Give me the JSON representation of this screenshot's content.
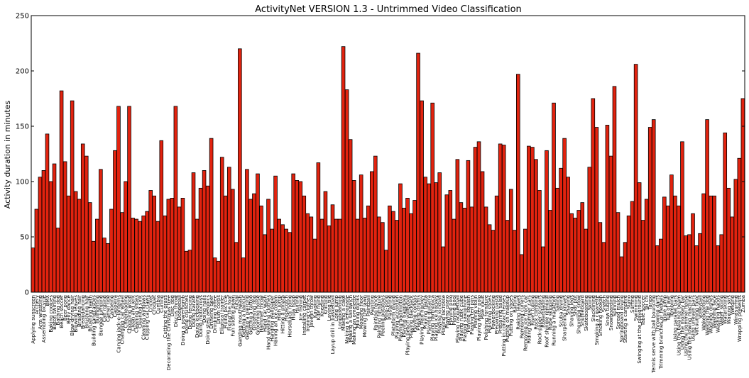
{
  "chart_data": {
    "type": "bar",
    "title": "ActivityNet VERSION 1.3 - Untrimmed Video Classification",
    "xlabel": "",
    "ylabel": "Activity duration in minutes",
    "ylim": [
      0,
      250
    ],
    "yticks": [
      0,
      50,
      100,
      150,
      200,
      250
    ],
    "grid": false,
    "bar_color": "#e2230f",
    "categories": [
      "Applying sunscreen",
      "Archery",
      "Arm wrestling",
      "Assembling bicycle",
      "BMX",
      "Baking cookies",
      "Baton twirling",
      "Bathing dog",
      "Beach soccer",
      "Beer pong",
      "Belly dance",
      "Blow-drying hair",
      "Blowing leaves",
      "Braiding hair",
      "Breakdancing",
      "Brushing hair",
      "Brushing teeth",
      "Building sandcastles",
      "Bullfighting",
      "Bungee jumping",
      "Calf roping",
      "Camel ride",
      "Canoeing",
      "Capoeira",
      "Carving jack-o-lanterns",
      "Changing car wheel",
      "Cheerleading",
      "Chopping wood",
      "Clean and jerk",
      "Cleaning shoes",
      "Cleaning sink",
      "Cleaning windows",
      "Clipping cat claws",
      "Cricket",
      "Croquet",
      "Cumbia",
      "Curling",
      "Cutting the grass",
      "Decorating the Christmas tree",
      "Disc dog",
      "Discus throw",
      "Dodgeball",
      "Doing a powerbomb",
      "Doing crunches",
      "Doing fencing",
      "Doing karate",
      "Doing kickboxing",
      "Doing motocross",
      "Doing nails",
      "Doing step aerobics",
      "Drinking beer",
      "Drinking coffee",
      "Drum corps",
      "Elliptical trainer",
      "Fixing bicycle",
      "Fixing the roof",
      "Fun sliding down",
      "Futsal",
      "Gargling mouthwash",
      "Getting a haircut",
      "Getting a piercing",
      "Getting a tattoo",
      "Grooming dog",
      "Grooming horse",
      "Hammer throw",
      "Hand car wash",
      "Hand washing clothes",
      "Hanging wallpaper",
      "Having an ice cream",
      "High jump",
      "Hitting a pinata",
      "Hopscotch",
      "Horseback riding",
      "Hula hoop",
      "Hurling",
      "Ice fishing",
      "Installing carpet",
      "Ironing clothes",
      "Javelin throw",
      "Kayaking",
      "Kite flying",
      "Kneeling",
      "Knitting",
      "Laying tile",
      "Layup drill in basketball",
      "Long jump",
      "Longboarding",
      "Making a cake",
      "Making a lemonade",
      "Making a sandwich",
      "Making an omelette",
      "Mixing drinks",
      "Mooping floor",
      "Mowing the lawn",
      "Paintball",
      "Painting",
      "Painting fence",
      "Painting furniture",
      "Peeling potatoes",
      "Ping-pong",
      "Plastering",
      "Plataform diving",
      "Playing accordion",
      "Playing badminton",
      "Playing bagpipes",
      "Playing beach volleyball",
      "Playing blackjack",
      "Playing congas",
      "Playing drums",
      "Playing field hockey",
      "Playing flauta",
      "Playing guitarra",
      "Playing harmonica",
      "Playing ice hockey",
      "Playing kickball",
      "Playing lacrosse",
      "Playing piano",
      "Playing polo",
      "Playing pool",
      "Playing racquetball",
      "Playing rubik cube",
      "Playing saxophone",
      "Playing squash",
      "Playing ten pins",
      "Playing violin",
      "Playing water polo",
      "Pole vault",
      "Polishing forniture",
      "Polishing shoes",
      "Powerbocking",
      "Preparing pasta",
      "Preparing salad",
      "Putting in contact lenses",
      "Putting on makeup",
      "Putting on shoes",
      "Rafting",
      "Raking leaves",
      "Removing curlers",
      "Removing ice from car",
      "Riding bumper cars",
      "River tubing",
      "Rock climbing",
      "Rock-paper-scissors",
      "Rollerblading",
      "Roof shingle removal",
      "Rope skipping",
      "Running a marathon",
      "Sailing",
      "Scuba diving",
      "Sharpening knives",
      "Shaving",
      "Shaving legs",
      "Shot put",
      "Shoveling snow",
      "Shuffleboard",
      "Skateboarding",
      "Skiing",
      "Slacklining",
      "Smoking a cigarette",
      "Smoking hookah",
      "Snatch",
      "Snow tubing",
      "Snowboarding",
      "Spinning",
      "Spread mulch",
      "Springboard diving",
      "Starting a campfire",
      "Sumo",
      "Surfing",
      "Swimming",
      "Swinging at the playground",
      "Table soccer",
      "Tai chi",
      "Tango",
      "Tennis serve with ball bouncing",
      "Throwing darts",
      "Trimming branches or hedges",
      "Triple jump",
      "Tug of war",
      "Tumbling",
      "Using parallel bars",
      "Using the balance beam",
      "Using the monkey bar",
      "Using the pommel horse",
      "Using the rowing machine",
      "Using uneven bars",
      "Vacuuming floor",
      "Volleyball",
      "Wakeboarding",
      "Walking the dog",
      "Washing dishes",
      "Washing face",
      "Washing hands",
      "Water skiing",
      "Waterskiing",
      "Waxing skis",
      "Welding",
      "Windsurfing",
      "Wrapping presents",
      "Zumba"
    ],
    "values": [
      40,
      75,
      104,
      110,
      143,
      100,
      116,
      58,
      182,
      118,
      87,
      173,
      91,
      84,
      134,
      123,
      81,
      46,
      66,
      111,
      49,
      44,
      75,
      128,
      168,
      72,
      100,
      168,
      67,
      66,
      64,
      69,
      73,
      92,
      87,
      64,
      137,
      69,
      84,
      85,
      168,
      77,
      85,
      37,
      38,
      108,
      66,
      94,
      110,
      96,
      139,
      31,
      28,
      122,
      87,
      113,
      93,
      45,
      220,
      31,
      111,
      84,
      89,
      107,
      78,
      52,
      84,
      57,
      105,
      66,
      61,
      57,
      54,
      107,
      101,
      100,
      87,
      71,
      68,
      48,
      117,
      66,
      91,
      60,
      79,
      66,
      66,
      222,
      183,
      138,
      101,
      66,
      106,
      67,
      78,
      109,
      123,
      68,
      63,
      38,
      78,
      73,
      65,
      98,
      76,
      85,
      71,
      83,
      216,
      173,
      104,
      98,
      171,
      99,
      108,
      41,
      88,
      92,
      66,
      120,
      81,
      76,
      119,
      77,
      131,
      136,
      109,
      77,
      61,
      56,
      87,
      134,
      133,
      65,
      93,
      56,
      197,
      34,
      57,
      132,
      131,
      120,
      92,
      41,
      128,
      74,
      171,
      94,
      112,
      139,
      104,
      71,
      67,
      74,
      81,
      57,
      113,
      175,
      149,
      63,
      45,
      151,
      123,
      186,
      72,
      32,
      45,
      69,
      82,
      206,
      99,
      65,
      84,
      149,
      156,
      42,
      48,
      86,
      78,
      106,
      87,
      78,
      136,
      51,
      52,
      71,
      42,
      53,
      89,
      156,
      87,
      87,
      42,
      52,
      144,
      94,
      68,
      102,
      121,
      175
    ]
  }
}
